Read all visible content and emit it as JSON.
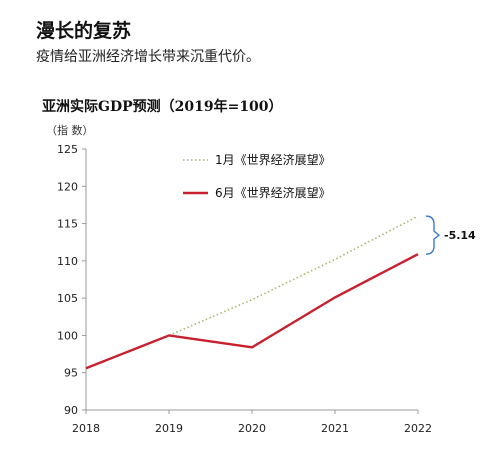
{
  "header": {
    "title": "漫长的复苏",
    "subtitle": "疫情给亚洲经济增长带来沉重代价。"
  },
  "chart_data": {
    "type": "line",
    "title": "亚洲实际GDP预测（2019年=100）",
    "unit": "（指 数）",
    "x": [
      2018,
      2019,
      2020,
      2021,
      2022
    ],
    "ylim": [
      90,
      125
    ],
    "yticks": [
      90,
      95,
      100,
      105,
      110,
      115,
      120,
      125
    ],
    "series": [
      {
        "name": "1月《世界经济展望》",
        "color": "#a3b86a",
        "style": "dotted",
        "x": [
          2019,
          2020,
          2021,
          2022
        ],
        "values": [
          100,
          104.8,
          110.2,
          116.0
        ]
      },
      {
        "name": "6月《世界经济展望》",
        "color": "#c8202e",
        "style": "solid",
        "x": [
          2018,
          2019,
          2020,
          2021,
          2022
        ],
        "values": [
          95.6,
          100,
          98.4,
          105.1,
          110.9
        ]
      }
    ],
    "annotation": {
      "text": "-5.14",
      "x": 2022,
      "from": 110.9,
      "to": 116.0,
      "color": "#3b7bd4"
    },
    "legend": "top-center",
    "grid": false
  }
}
